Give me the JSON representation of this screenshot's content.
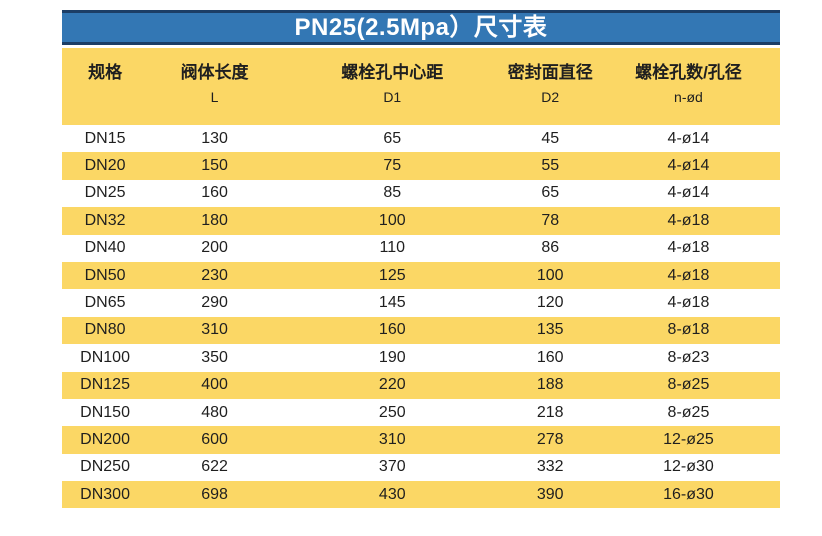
{
  "title": "PN25(2.5Mpa）尺寸表",
  "colors": {
    "title_bg": "#3377B4",
    "title_border": "#1C3E66",
    "title_text": "#FFFFFF",
    "header_bg": "#FBD765",
    "row_alt_bg": "#FBD765",
    "row_bg": "#FFFFFF",
    "text": "#1F1F1F"
  },
  "chart_data": {
    "type": "table",
    "title": "PN25(2.5Mpa）尺寸表",
    "columns": [
      {
        "name": "规格",
        "sub": ""
      },
      {
        "name": "阀体长度",
        "sub": "L"
      },
      {
        "name": "螺栓孔中心距",
        "sub": "D1"
      },
      {
        "name": "密封面直径",
        "sub": "D2"
      },
      {
        "name": "螺栓孔数/孔径",
        "sub": "n-ød"
      }
    ],
    "rows": [
      [
        "DN15",
        "130",
        "65",
        "45",
        "4-ø14"
      ],
      [
        "DN20",
        "150",
        "75",
        "55",
        "4-ø14"
      ],
      [
        "DN25",
        "160",
        "85",
        "65",
        "4-ø14"
      ],
      [
        "DN32",
        "180",
        "100",
        "78",
        "4-ø18"
      ],
      [
        "DN40",
        "200",
        "110",
        "86",
        "4-ø18"
      ],
      [
        "DN50",
        "230",
        "125",
        "100",
        "4-ø18"
      ],
      [
        "DN65",
        "290",
        "145",
        "120",
        "4-ø18"
      ],
      [
        "DN80",
        "310",
        "160",
        "135",
        "8-ø18"
      ],
      [
        "DN100",
        "350",
        "190",
        "160",
        "8-ø23"
      ],
      [
        "DN125",
        "400",
        "220",
        "188",
        "8-ø25"
      ],
      [
        "DN150",
        "480",
        "250",
        "218",
        "8-ø25"
      ],
      [
        "DN200",
        "600",
        "310",
        "278",
        "12-ø25"
      ],
      [
        "DN250",
        "622",
        "370",
        "332",
        "12-ø30"
      ],
      [
        "DN300",
        "698",
        "430",
        "390",
        "16-ø30"
      ]
    ]
  }
}
